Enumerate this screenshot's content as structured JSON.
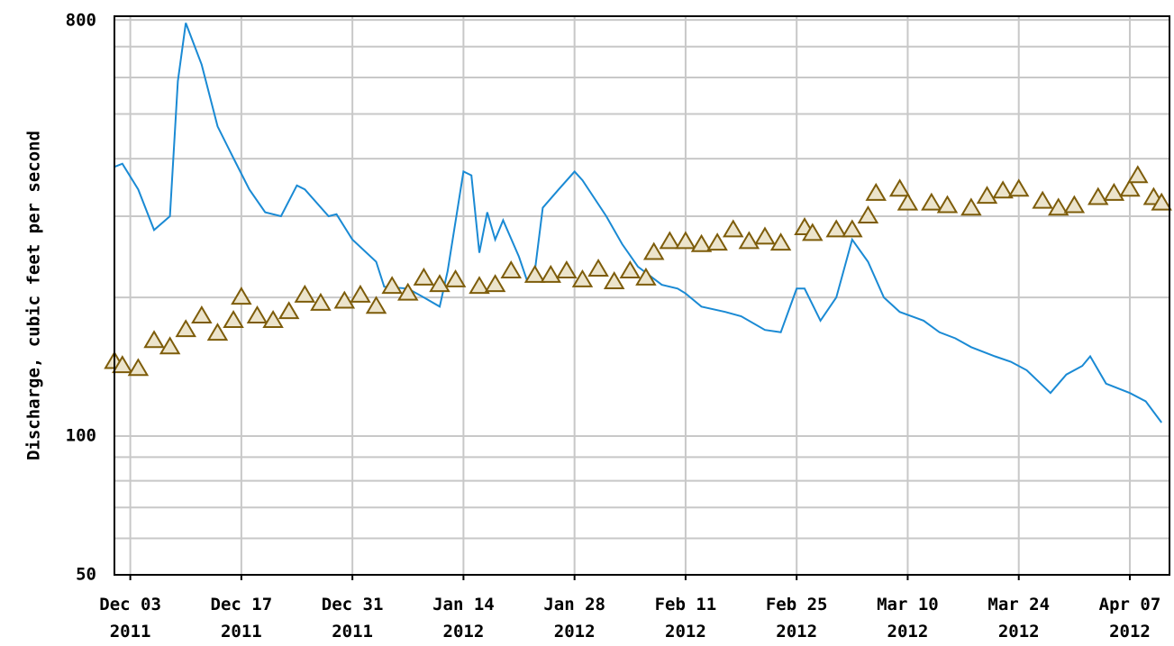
{
  "chart_data": {
    "type": "line",
    "y_label": "Discharge, cubic feet per second",
    "log_y": true,
    "grid": true,
    "xlim": [
      "2011-12-01",
      "2012-04-12"
    ],
    "ylim": [
      50,
      815
    ],
    "yticks": [
      50,
      100,
      800
    ],
    "minor_yticks": [
      60,
      70,
      80,
      90,
      200,
      300,
      400,
      500,
      600,
      700
    ],
    "xticks": [
      {
        "value": "2011-12-03",
        "label": "Dec 03\n2011"
      },
      {
        "value": "2011-12-17",
        "label": "Dec 17\n2011"
      },
      {
        "value": "2011-12-31",
        "label": "Dec 31\n2011"
      },
      {
        "value": "2012-01-14",
        "label": "Jan 14\n2012"
      },
      {
        "value": "2012-01-28",
        "label": "Jan 28\n2012"
      },
      {
        "value": "2012-02-11",
        "label": "Feb 11\n2012"
      },
      {
        "value": "2012-02-25",
        "label": "Feb 25\n2012"
      },
      {
        "value": "2012-03-10",
        "label": "Mar 10\n2012"
      },
      {
        "value": "2012-03-24",
        "label": "Mar 24\n2012"
      },
      {
        "value": "2012-04-07",
        "label": "Apr 07\n2012"
      }
    ],
    "series": [
      {
        "color": "#1a8ad4",
        "marker": "none",
        "x": [
          "2011-12-01",
          "2011-12-02",
          "2011-12-04",
          "2011-12-06",
          "2011-12-08",
          "2011-12-09",
          "2011-12-10",
          "2011-12-12",
          "2011-12-14",
          "2011-12-16",
          "2011-12-18",
          "2011-12-20",
          "2011-12-22",
          "2011-12-24",
          "2011-12-25",
          "2011-12-28",
          "2011-12-29",
          "2011-12-31",
          "2012-01-03",
          "2012-01-04",
          "2012-01-07",
          "2012-01-09",
          "2012-01-11",
          "2012-01-12",
          "2012-01-14",
          "2012-01-15",
          "2012-01-16",
          "2012-01-17",
          "2012-01-18",
          "2012-01-19",
          "2012-01-21",
          "2012-01-22",
          "2012-01-23",
          "2012-01-24",
          "2012-01-26",
          "2012-01-28",
          "2012-01-29",
          "2012-02-01",
          "2012-02-03",
          "2012-02-05",
          "2012-02-08",
          "2012-02-10",
          "2012-02-11",
          "2012-02-13",
          "2012-02-16",
          "2012-02-18",
          "2012-02-21",
          "2012-02-23",
          "2012-02-25",
          "2012-02-26",
          "2012-02-28",
          "2012-03-01",
          "2012-03-03",
          "2012-03-05",
          "2012-03-07",
          "2012-03-09",
          "2012-03-12",
          "2012-03-14",
          "2012-03-16",
          "2012-03-18",
          "2012-03-21",
          "2012-03-23",
          "2012-03-25",
          "2012-03-28",
          "2012-03-30",
          "2012-04-01",
          "2012-04-02",
          "2012-04-04",
          "2012-04-07",
          "2012-04-09",
          "2012-04-11"
        ],
        "values": [
          384,
          390,
          343,
          280,
          300,
          589,
          788,
          640,
          470,
          401,
          343,
          306,
          300,
          350,
          343,
          300,
          303,
          267,
          239,
          211,
          209,
          200,
          191,
          228,
          375,
          368,
          250,
          306,
          267,
          294,
          245,
          218,
          228,
          313,
          343,
          375,
          359,
          300,
          261,
          233,
          213,
          209,
          204,
          191,
          186,
          182,
          170,
          168,
          209,
          209,
          178,
          200,
          267,
          239,
          200,
          186,
          178,
          168,
          163,
          156,
          149,
          145,
          139,
          124,
          136,
          142,
          149,
          130,
          124,
          119,
          107
        ]
      },
      {
        "color": "#7d5c0a",
        "fill": "#ece4cc",
        "marker": "triangle",
        "x": [
          "2011-12-01",
          "2011-12-02",
          "2011-12-04",
          "2011-12-06",
          "2011-12-08",
          "2011-12-10",
          "2011-12-12",
          "2011-12-14",
          "2011-12-16",
          "2011-12-17",
          "2011-12-19",
          "2011-12-21",
          "2011-12-23",
          "2011-12-25",
          "2011-12-27",
          "2011-12-30",
          "2012-01-01",
          "2012-01-03",
          "2012-01-05",
          "2012-01-07",
          "2012-01-09",
          "2012-01-11",
          "2012-01-13",
          "2012-01-16",
          "2012-01-18",
          "2012-01-20",
          "2012-01-23",
          "2012-01-25",
          "2012-01-27",
          "2012-01-29",
          "2012-01-31",
          "2012-02-02",
          "2012-02-04",
          "2012-02-06",
          "2012-02-07",
          "2012-02-09",
          "2012-02-11",
          "2012-02-13",
          "2012-02-15",
          "2012-02-17",
          "2012-02-19",
          "2012-02-21",
          "2012-02-23",
          "2012-02-26",
          "2012-02-27",
          "2012-03-01",
          "2012-03-03",
          "2012-03-05",
          "2012-03-06",
          "2012-03-09",
          "2012-03-10",
          "2012-03-13",
          "2012-03-15",
          "2012-03-18",
          "2012-03-20",
          "2012-03-22",
          "2012-03-24",
          "2012-03-27",
          "2012-03-29",
          "2012-03-31",
          "2012-04-03",
          "2012-04-05",
          "2012-04-07",
          "2012-04-08",
          "2012-04-10",
          "2012-04-11"
        ],
        "values": [
          145,
          142,
          140,
          161,
          156,
          170,
          182,
          167,
          178,
          200,
          182,
          178,
          186,
          202,
          194,
          196,
          202,
          191,
          211,
          204,
          220,
          213,
          218,
          211,
          213,
          228,
          223,
          223,
          228,
          218,
          230,
          216,
          228,
          220,
          250,
          264,
          264,
          260,
          262,
          280,
          264,
          270,
          262,
          283,
          275,
          280,
          280,
          300,
          336,
          343,
          320,
          320,
          316,
          312,
          331,
          340,
          343,
          323,
          312,
          316,
          329,
          336,
          343,
          367,
          329,
          320
        ]
      }
    ]
  }
}
